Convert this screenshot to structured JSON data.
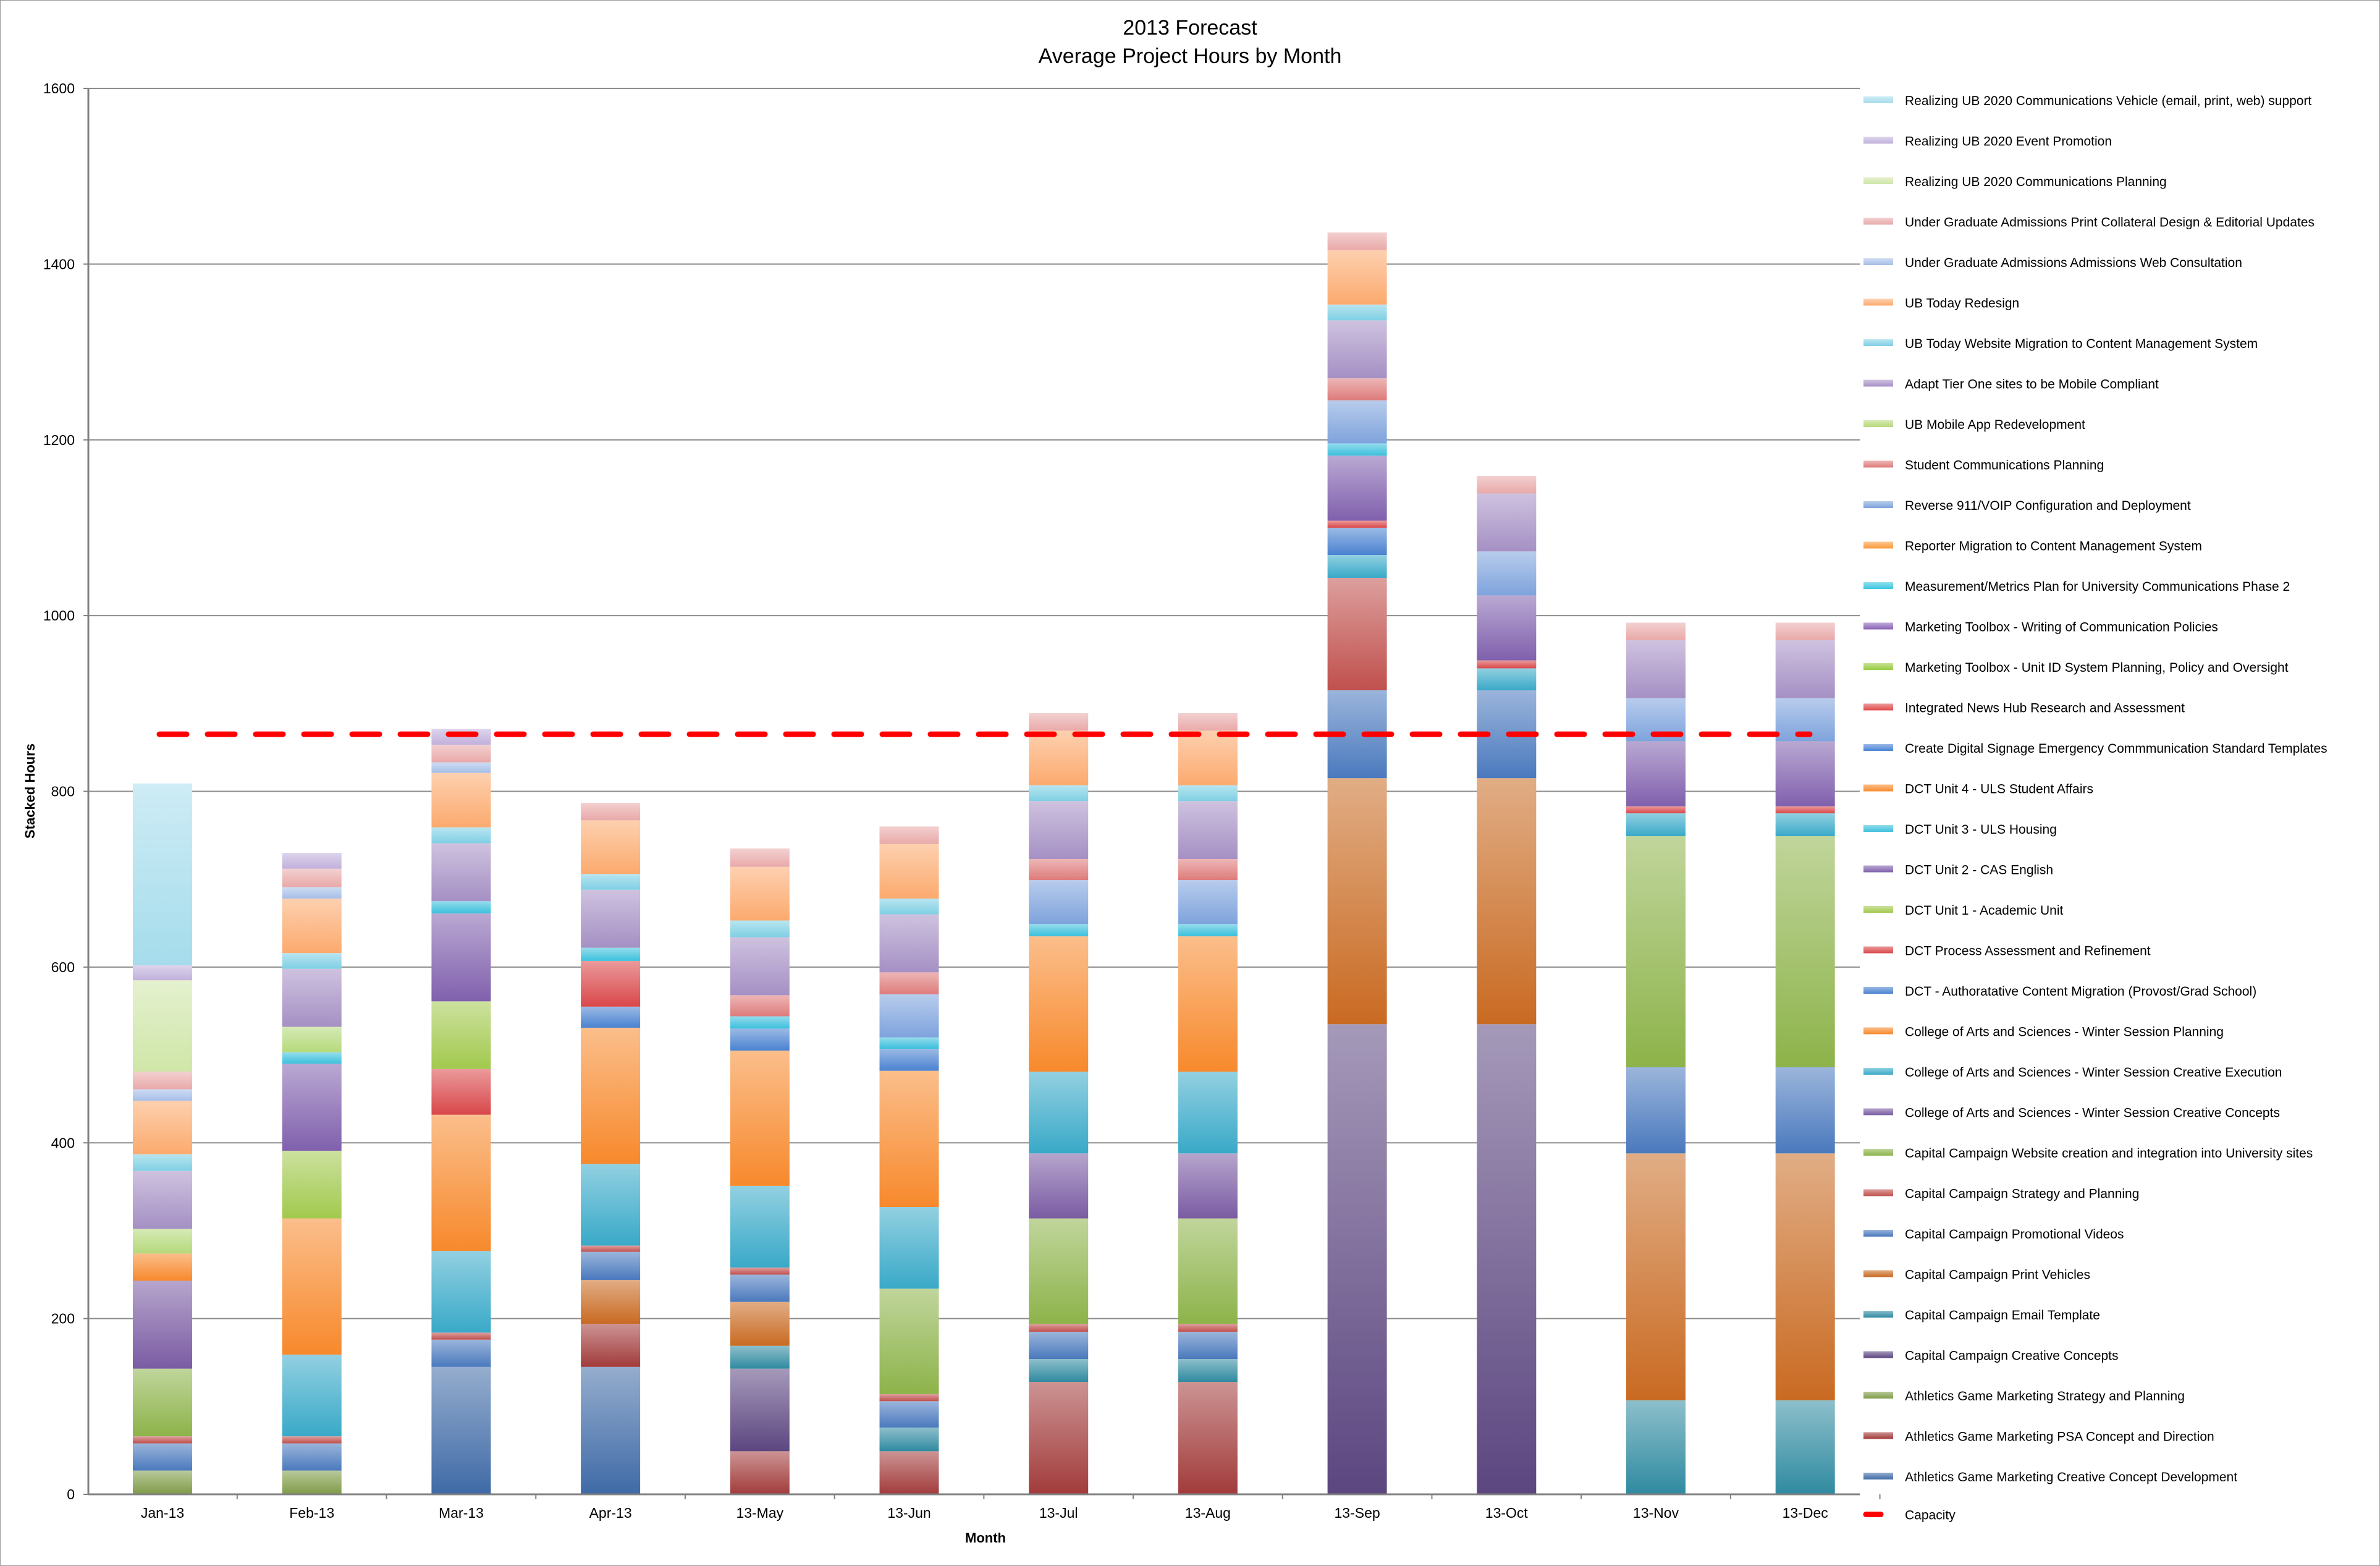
{
  "chart_data": {
    "type": "bar",
    "stacked": true,
    "title": [
      "2013 Forecast",
      "Average Project Hours by Month"
    ],
    "xlabel": "Month",
    "ylabel": "Stacked Hours",
    "ylim": [
      0,
      1600
    ],
    "yticks": [
      "0",
      "200",
      "400",
      "600",
      "800",
      "1000",
      "1200",
      "1400",
      "1600"
    ],
    "grid": true,
    "legend_position": "right",
    "categories": [
      "Jan-13",
      "Feb-13",
      "Mar-13",
      "Apr-13",
      "13-May",
      "13-Jun",
      "13-Jul",
      "13-Aug",
      "13-Sep",
      "13-Oct",
      "13-Nov",
      "13-Dec"
    ],
    "capacity": {
      "name": "Capacity",
      "value": 865,
      "color": "#ff0000"
    },
    "series": [
      {
        "name": "Athletics Game Marketing Creative Concept Development",
        "color": "#3f6aa6",
        "values": [
          0,
          0,
          145,
          145,
          0,
          0,
          0,
          0,
          0,
          0,
          0,
          0
        ]
      },
      {
        "name": "Athletics Game Marketing PSA Concept and Direction",
        "color": "#a23b3b",
        "values": [
          0,
          0,
          0,
          49,
          49,
          49,
          128,
          128,
          0,
          0,
          0,
          0
        ]
      },
      {
        "name": "Athletics Game Marketing Strategy and Planning",
        "color": "#7f9b48",
        "values": [
          27,
          27,
          0,
          0,
          0,
          0,
          0,
          0,
          0,
          0,
          0,
          0
        ]
      },
      {
        "name": "Capital Campaign Creative Concepts",
        "color": "#5c4680",
        "values": [
          0,
          0,
          0,
          0,
          94,
          0,
          0,
          0,
          535,
          535,
          0,
          0
        ]
      },
      {
        "name": "Capital Campaign Email Template",
        "color": "#2f8aa0",
        "values": [
          0,
          0,
          0,
          0,
          26,
          27,
          26,
          26,
          0,
          0,
          107,
          107
        ]
      },
      {
        "name": "Capital Campaign Print Vehicles",
        "color": "#c96a22",
        "values": [
          0,
          0,
          0,
          50,
          50,
          0,
          0,
          0,
          280,
          280,
          281,
          281
        ]
      },
      {
        "name": "Capital Campaign Promotional Videos",
        "color": "#4a79bd",
        "values": [
          31,
          31,
          31,
          32,
          31,
          30,
          31,
          31,
          100,
          100,
          98,
          98
        ]
      },
      {
        "name": "Capital Campaign Strategy and Planning",
        "color": "#c0504d",
        "values": [
          8,
          8,
          8,
          7,
          8,
          8,
          9,
          9,
          128,
          0,
          0,
          0
        ]
      },
      {
        "name": "Capital Campaign Website creation and integration into University sites",
        "color": "#8db34a",
        "values": [
          77,
          0,
          0,
          0,
          0,
          120,
          120,
          120,
          0,
          0,
          263,
          263
        ]
      },
      {
        "name": "College of Arts and Sciences - Winter Session Creative Concepts",
        "color": "#7a5ba3",
        "values": [
          100,
          0,
          0,
          0,
          0,
          0,
          74,
          74,
          0,
          0,
          0,
          0
        ]
      },
      {
        "name": "College of Arts and Sciences - Winter Session Creative Execution",
        "color": "#39a9c8",
        "values": [
          0,
          93,
          93,
          93,
          93,
          93,
          93,
          93,
          26,
          25,
          26,
          26
        ]
      },
      {
        "name": "College of Arts and Sciences - Winter Session Planning",
        "color": "#f7892c",
        "values": [
          31,
          155,
          155,
          155,
          154,
          155,
          154,
          154,
          0,
          0,
          0,
          0
        ]
      },
      {
        "name": "DCT - Authoratative Content Migration (Provost/Grad School)",
        "color": "#4a82d0",
        "values": [
          0,
          0,
          0,
          24,
          25,
          25,
          0,
          0,
          31,
          0,
          0,
          0
        ]
      },
      {
        "name": "DCT Process Assessment and Refinement",
        "color": "#d9474a",
        "values": [
          0,
          0,
          52,
          52,
          0,
          0,
          0,
          0,
          8,
          9,
          8,
          8
        ]
      },
      {
        "name": "DCT Unit 1 - Academic Unit",
        "color": "#a2c94e",
        "values": [
          0,
          77,
          77,
          0,
          0,
          0,
          0,
          0,
          0,
          0,
          0,
          0
        ]
      },
      {
        "name": "DCT Unit 2 - CAS English",
        "color": "#8060ad",
        "values": [
          0,
          99,
          100,
          0,
          0,
          0,
          0,
          0,
          74,
          74,
          74,
          74
        ]
      },
      {
        "name": "DCT Unit 3 - ULS Housing",
        "color": "#3cc0dc",
        "values": [
          0,
          13,
          14,
          15,
          14,
          13,
          14,
          14,
          14,
          0,
          0,
          0
        ]
      },
      {
        "name": "DCT Unit 4 - ULS Student Affairs",
        "color": "#f98b2e",
        "values": [
          0,
          0,
          0,
          0,
          0,
          0,
          0,
          0,
          0,
          0,
          0,
          0
        ]
      },
      {
        "name": "Create Digital Signage Emergency Commmunication Standard Templates",
        "color": "#4a82d6",
        "values": [
          0,
          0,
          0,
          0,
          0,
          0,
          0,
          0,
          0,
          0,
          0,
          0
        ]
      },
      {
        "name": "Integrated News Hub Research and Assessment",
        "color": "#e04a4a",
        "values": [
          0,
          0,
          0,
          0,
          0,
          0,
          0,
          0,
          0,
          0,
          0,
          0
        ]
      },
      {
        "name": "Marketing Toolbox - Unit ID System Planning, Policy and Oversight",
        "color": "#98cc40",
        "values": [
          0,
          0,
          0,
          0,
          0,
          0,
          0,
          0,
          0,
          0,
          0,
          0
        ]
      },
      {
        "name": "Marketing Toolbox - Writing of Communication Policies",
        "color": "#8a62b8",
        "values": [
          0,
          0,
          0,
          0,
          0,
          0,
          0,
          0,
          0,
          0,
          0,
          0
        ]
      },
      {
        "name": "Measurement/Metrics Plan for University Communications Phase 2",
        "color": "#3ac6e0",
        "values": [
          0,
          0,
          0,
          0,
          0,
          0,
          0,
          0,
          0,
          0,
          0,
          0
        ]
      },
      {
        "name": "Reporter Migration to Content Management System",
        "color": "#fb9a3c",
        "values": [
          0,
          0,
          0,
          0,
          0,
          0,
          0,
          0,
          0,
          0,
          0,
          0
        ]
      },
      {
        "name": "Reverse 911/VOIP Configuration and Deployment",
        "color": "#7ea3dc",
        "values": [
          0,
          0,
          0,
          0,
          0,
          49,
          50,
          50,
          49,
          50,
          49,
          49
        ]
      },
      {
        "name": "Student Communications Planning",
        "color": "#de7b7b",
        "values": [
          0,
          0,
          0,
          0,
          24,
          25,
          24,
          24,
          25,
          0,
          0,
          0
        ]
      },
      {
        "name": "UB Mobile App Redevelopment",
        "color": "#b5d97a",
        "values": [
          28,
          29,
          0,
          0,
          0,
          0,
          0,
          0,
          0,
          0,
          0,
          0
        ]
      },
      {
        "name": "Adapt Tier One sites to be Mobile Compliant",
        "color": "#a590c4",
        "values": [
          66,
          66,
          66,
          66,
          66,
          66,
          66,
          66,
          66,
          66,
          66,
          66
        ]
      },
      {
        "name": "UB Today Website Migration to Content Management System",
        "color": "#7fcfe4",
        "values": [
          19,
          18,
          18,
          18,
          19,
          18,
          18,
          18,
          18,
          0,
          0,
          0
        ]
      },
      {
        "name": "UB Today Redesign",
        "color": "#fcaa6e",
        "values": [
          61,
          62,
          62,
          61,
          61,
          62,
          62,
          62,
          62,
          0,
          0,
          0
        ]
      },
      {
        "name": "Under Graduate Admissions Admissions Web Consultation",
        "color": "#a5bfe8",
        "values": [
          13,
          13,
          12,
          0,
          0,
          0,
          0,
          0,
          0,
          0,
          0,
          0
        ]
      },
      {
        "name": "Under Graduate Admissions Print Collateral Design & Editorial Updates",
        "color": "#e9a9a9",
        "values": [
          20,
          21,
          20,
          20,
          21,
          20,
          20,
          20,
          20,
          20,
          20,
          20
        ]
      },
      {
        "name": "Realizing UB 2020 Communications Planning",
        "color": "#cfe6a8",
        "values": [
          104,
          0,
          0,
          0,
          0,
          0,
          0,
          0,
          0,
          0,
          0,
          0
        ]
      },
      {
        "name": "Realizing UB 2020 Event Promotion",
        "color": "#c1b0dc",
        "values": [
          17,
          18,
          18,
          0,
          0,
          0,
          0,
          0,
          0,
          0,
          0,
          0
        ]
      },
      {
        "name": "Realizing UB 2020 Communications Vehicle (email, print, web) support",
        "color": "#a5dcec",
        "values": [
          207,
          0,
          0,
          0,
          0,
          0,
          0,
          0,
          0,
          0,
          0,
          0
        ]
      }
    ]
  }
}
